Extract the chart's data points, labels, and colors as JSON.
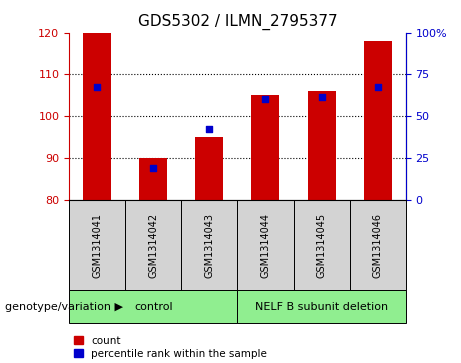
{
  "title": "GDS5302 / ILMN_2795377",
  "samples": [
    "GSM1314041",
    "GSM1314042",
    "GSM1314043",
    "GSM1314044",
    "GSM1314045",
    "GSM1314046"
  ],
  "bar_tops": [
    120,
    90,
    95,
    105,
    106,
    118
  ],
  "bar_base": 80,
  "blue_y_left": [
    107,
    87.5,
    97,
    104,
    104.5,
    107
  ],
  "ylim_left": [
    80,
    120
  ],
  "ylim_right": [
    0,
    100
  ],
  "yticks_left": [
    80,
    90,
    100,
    110,
    120
  ],
  "yticks_right": [
    0,
    25,
    50,
    75,
    100
  ],
  "ytick_labels_right": [
    "0",
    "25",
    "50",
    "75",
    "100%"
  ],
  "bar_color": "#cc0000",
  "blue_color": "#0000cc",
  "group1_label": "control",
  "group2_label": "NELF B subunit deletion",
  "group_color": "#90ee90",
  "group1_indices": [
    0,
    1,
    2
  ],
  "group2_indices": [
    3,
    4,
    5
  ],
  "genotype_label": "genotype/variation",
  "legend_count": "count",
  "legend_pct": "percentile rank within the sample",
  "bar_width": 0.5,
  "label_box_color": "#d3d3d3",
  "title_fontsize": 11,
  "tick_fontsize": 8,
  "sample_fontsize": 7,
  "group_fontsize": 8,
  "legend_fontsize": 7.5,
  "genotype_fontsize": 8
}
